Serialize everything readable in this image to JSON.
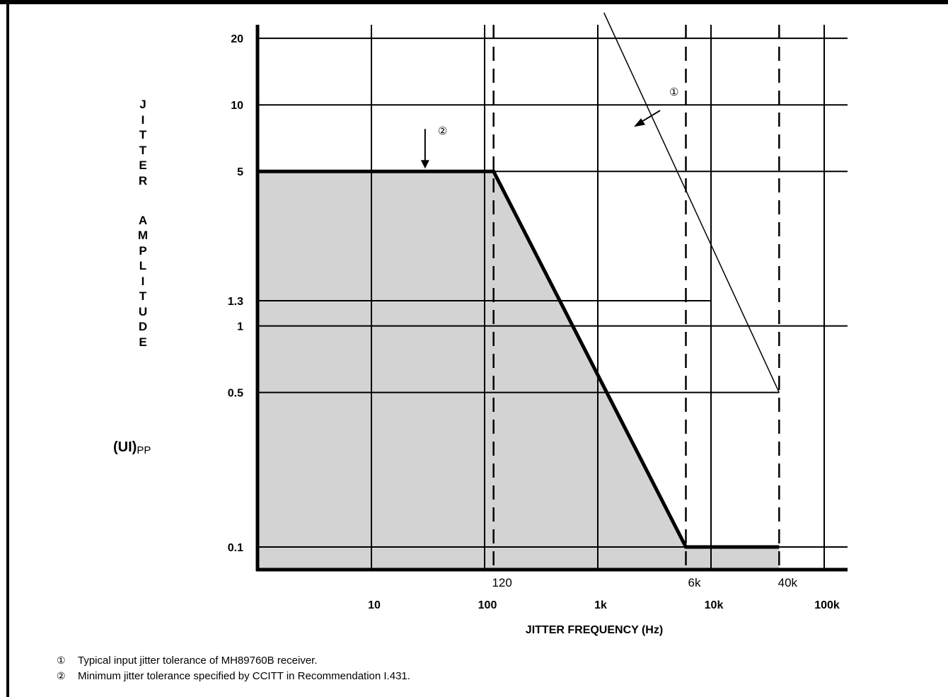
{
  "chart_data": {
    "type": "line",
    "xlabel": "JITTER FREQUENCY (Hz)",
    "ylabel_letters": [
      "J",
      "I",
      "T",
      "T",
      "E",
      "R",
      "",
      "A",
      "M",
      "P",
      "L",
      "I",
      "T",
      "U",
      "D",
      "E"
    ],
    "yunit_main": "(UI)",
    "yunit_sub": "PP",
    "x_scale": "log",
    "y_scale": "log",
    "xlim": [
      1,
      200000
    ],
    "ylim": [
      0.05,
      30
    ],
    "x_ticks": [
      {
        "value": 10,
        "label": "10"
      },
      {
        "value": 100,
        "label": "100"
      },
      {
        "value": 1000,
        "label": "1k"
      },
      {
        "value": 10000,
        "label": "10k"
      },
      {
        "value": 100000,
        "label": "100k"
      }
    ],
    "x_marker_labels": [
      {
        "value": 120,
        "label": "120"
      },
      {
        "value": 6000,
        "label": "6k"
      },
      {
        "value": 40000,
        "label": "40k"
      }
    ],
    "y_ticks": [
      {
        "value": 20,
        "label": "20"
      },
      {
        "value": 10,
        "label": "10"
      },
      {
        "value": 5,
        "label": "5"
      },
      {
        "value": 1.3,
        "label": "1.3"
      },
      {
        "value": 1,
        "label": "1"
      },
      {
        "value": 0.5,
        "label": "0.5"
      },
      {
        "value": 0.1,
        "label": "0.1"
      }
    ],
    "dashed_x": [
      120,
      6000,
      40000
    ],
    "series": [
      {
        "marker": "①",
        "style": "thin",
        "x": [
          1000,
          40000
        ],
        "y": [
          30,
          0.5
        ]
      },
      {
        "marker": "②",
        "style": "thick-shaded",
        "x": [
          1,
          120,
          6000,
          40000
        ],
        "y": [
          5,
          5,
          0.1,
          0.1
        ]
      }
    ],
    "callouts": [
      {
        "marker": "①",
        "x": 3500,
        "y": 10
      },
      {
        "marker": "②",
        "x": 50,
        "y": 5
      }
    ],
    "grid": true
  },
  "notes": [
    {
      "marker": "①",
      "text": "Typical input jitter tolerance of MH89760B receiver."
    },
    {
      "marker": "②",
      "text": "Minimum jitter tolerance specified by CCITT in Recommendation I.431."
    }
  ],
  "colors": {
    "shade": "#d3d3d3",
    "line": "#000000"
  }
}
